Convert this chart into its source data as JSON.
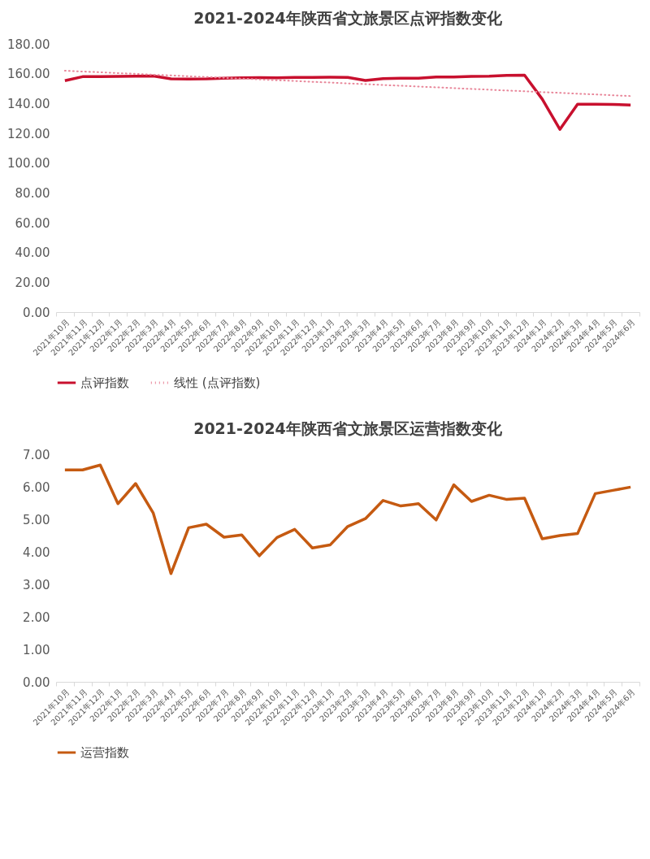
{
  "chart_data": [
    {
      "type": "line",
      "title": "2021-2024年陕西省文旅景区点评指数变化",
      "categories": [
        "2021年10月",
        "2021年11月",
        "2021年12月",
        "2022年1月",
        "2022年2月",
        "2022年3月",
        "2022年4月",
        "2022年5月",
        "2022年6月",
        "2022年7月",
        "2022年8月",
        "2022年9月",
        "2022年10月",
        "2022年11月",
        "2022年12月",
        "2023年1月",
        "2023年2月",
        "2023年3月",
        "2023年4月",
        "2023年5月",
        "2023年6月",
        "2023年7月",
        "2023年8月",
        "2023年9月",
        "2023年10月",
        "2023年11月",
        "2023年12月",
        "2024年1月",
        "2024年2月",
        "2024年3月",
        "2024年4月",
        "2024年5月",
        "2024年6月"
      ],
      "series": [
        {
          "name": "点评指数",
          "color": "#c8102e",
          "line_style": "solid",
          "values": [
            155.3,
            158.0,
            158.0,
            158.2,
            158.3,
            158.5,
            156.5,
            156.4,
            156.5,
            157.0,
            157.2,
            157.3,
            157.2,
            157.5,
            157.5,
            157.6,
            157.5,
            155.5,
            156.7,
            156.9,
            157.0,
            157.8,
            157.8,
            158.2,
            158.3,
            158.8,
            159.0,
            143.0,
            122.6,
            139.5,
            139.5,
            139.4,
            139.0
          ]
        },
        {
          "name": "线性 (点评指数)",
          "type": "line",
          "color": "#e8879a",
          "line_style": "dotted",
          "x": [
            "2021年10月",
            "2024年6月"
          ],
          "values": [
            162,
            145
          ]
        }
      ],
      "ylim": [
        0,
        180
      ],
      "yticks": [
        {
          "value": 0,
          "label": "0.00"
        },
        {
          "value": 20,
          "label": "20.00"
        },
        {
          "value": 40,
          "label": "40.00"
        },
        {
          "value": 60,
          "label": "60.00"
        },
        {
          "value": 80,
          "label": "80.00"
        },
        {
          "value": 100,
          "label": "100.00"
        },
        {
          "value": 120,
          "label": "120.00"
        },
        {
          "value": 140,
          "label": "140.00"
        },
        {
          "value": 160,
          "label": "160.00"
        },
        {
          "value": 180,
          "label": "180.00"
        }
      ],
      "grid": false,
      "legend": "bottom"
    },
    {
      "type": "line",
      "title": "2021-2024年陕西省文旅景区运营指数变化",
      "categories": [
        "2021年10月",
        "2021年11月",
        "2021年12月",
        "2022年1月",
        "2022年2月",
        "2022年3月",
        "2022年4月",
        "2022年5月",
        "2022年6月",
        "2022年7月",
        "2022年8月",
        "2022年9月",
        "2022年10月",
        "2022年11月",
        "2022年12月",
        "2023年1月",
        "2023年2月",
        "2023年3月",
        "2023年4月",
        "2023年5月",
        "2023年6月",
        "2023年7月",
        "2023年8月",
        "2023年9月",
        "2023年10月",
        "2023年11月",
        "2023年12月",
        "2024年1月",
        "2024年2月",
        "2024年3月",
        "2024年4月",
        "2024年5月",
        "2024年6月"
      ],
      "series": [
        {
          "name": "运营指数",
          "color": "#c55a11",
          "line_style": "solid",
          "values": [
            6.52,
            6.52,
            6.67,
            5.48,
            6.1,
            5.19,
            3.33,
            4.74,
            4.85,
            4.45,
            4.52,
            3.88,
            4.44,
            4.69,
            4.12,
            4.21,
            4.78,
            5.02,
            5.58,
            5.41,
            5.48,
            4.98,
            6.06,
            5.55,
            5.74,
            5.61,
            5.65,
            4.4,
            4.5,
            4.56,
            5.79,
            5.89,
            5.99
          ]
        }
      ],
      "ylim": [
        0,
        7
      ],
      "yticks": [
        {
          "value": 0,
          "label": "0.00"
        },
        {
          "value": 1,
          "label": "1.00"
        },
        {
          "value": 2,
          "label": "2.00"
        },
        {
          "value": 3,
          "label": "3.00"
        },
        {
          "value": 4,
          "label": "4.00"
        },
        {
          "value": 5,
          "label": "5.00"
        },
        {
          "value": 6,
          "label": "6.00"
        },
        {
          "value": 7,
          "label": "7.00"
        }
      ],
      "grid": false,
      "legend": "bottom"
    }
  ]
}
